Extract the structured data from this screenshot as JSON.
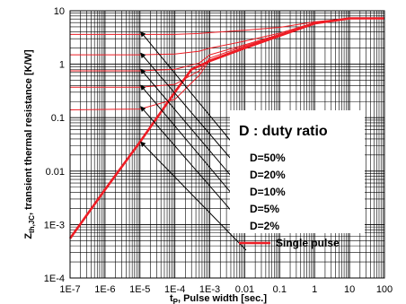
{
  "chart_data": {
    "type": "line",
    "xscale": "log",
    "yscale": "log",
    "xlim": [
      1e-07,
      100
    ],
    "ylim": [
      0.0001,
      10
    ],
    "xlabel_main": "t",
    "xlabel_sub": "P",
    "xlabel_rest": ", Pulse width [sec.]",
    "ylabel_main": "Z",
    "ylabel_sub": "th,JC",
    "ylabel_rest": ", transient thermal resistance [K/W]",
    "x_ticks": [
      {
        "value": 1e-07,
        "label": "1E-7"
      },
      {
        "value": 1e-06,
        "label": "1E-6"
      },
      {
        "value": 1e-05,
        "label": "1E-5"
      },
      {
        "value": 0.0001,
        "label": "1E-4"
      },
      {
        "value": 0.001,
        "label": "1E-3"
      },
      {
        "value": 0.01,
        "label": "0.01"
      },
      {
        "value": 0.1,
        "label": "0.1"
      },
      {
        "value": 1,
        "label": "1"
      },
      {
        "value": 10,
        "label": "10"
      },
      {
        "value": 100,
        "label": "100"
      }
    ],
    "y_ticks": [
      {
        "value": 10,
        "label": "10"
      },
      {
        "value": 1,
        "label": "1"
      },
      {
        "value": 0.1,
        "label": "0.1"
      },
      {
        "value": 0.01,
        "label": "0.01"
      },
      {
        "value": 0.001,
        "label": "1E-3"
      },
      {
        "value": 0.0001,
        "label": "1E-4"
      }
    ],
    "grid": true,
    "legend_title": "D : duty ratio",
    "legend_position": "right-center",
    "line_color": "#ee1c24",
    "series": [
      {
        "name": "D=50%",
        "x": [
          1e-07,
          1e-05,
          0.0001,
          0.0005,
          0.001,
          0.01,
          0.1,
          1,
          10,
          100
        ],
        "y": [
          3.6,
          3.6,
          3.6,
          3.75,
          3.9,
          4.3,
          4.9,
          6.2,
          7.2,
          7.2
        ]
      },
      {
        "name": "D=20%",
        "x": [
          1e-07,
          1e-05,
          0.0001,
          0.0005,
          0.001,
          0.01,
          0.1,
          1,
          10,
          100
        ],
        "y": [
          1.5,
          1.5,
          1.55,
          1.75,
          2.0,
          2.7,
          3.8,
          6.0,
          7.2,
          7.2
        ]
      },
      {
        "name": "D=10%",
        "x": [
          1e-07,
          1e-05,
          0.0001,
          0.0005,
          0.001,
          0.01,
          0.1,
          1,
          10,
          100
        ],
        "y": [
          0.75,
          0.75,
          0.8,
          1.05,
          1.5,
          2.3,
          3.6,
          5.9,
          7.2,
          7.2
        ]
      },
      {
        "name": "D=5%",
        "x": [
          1e-07,
          1e-05,
          0.0001,
          0.0005,
          0.001,
          0.01,
          0.1,
          1,
          10,
          100
        ],
        "y": [
          0.37,
          0.37,
          0.42,
          0.75,
          1.3,
          2.2,
          3.5,
          5.9,
          7.2,
          7.2
        ]
      },
      {
        "name": "D=2%",
        "x": [
          1e-07,
          1e-05,
          0.0001,
          0.0005,
          0.001,
          0.01,
          0.1,
          1,
          10,
          100
        ],
        "y": [
          0.14,
          0.145,
          0.22,
          0.62,
          1.2,
          2.1,
          3.45,
          5.85,
          7.2,
          7.2
        ]
      },
      {
        "name": "Single pulse",
        "x": [
          1e-07,
          1e-06,
          1e-05,
          0.0001,
          0.0003,
          0.001,
          0.01,
          0.1,
          1,
          10,
          100
        ],
        "y": [
          0.00055,
          0.0045,
          0.035,
          0.3,
          0.8,
          1.15,
          2.0,
          3.4,
          5.8,
          7.2,
          7.2
        ],
        "thick": true
      }
    ],
    "leader_lines": [
      {
        "from": [
          1e-05,
          4.0
        ],
        "to": [
          0.1,
          0.02
        ]
      },
      {
        "from": [
          1e-05,
          1.6
        ],
        "to": [
          0.1,
          0.01
        ]
      },
      {
        "from": [
          1e-05,
          0.8
        ],
        "to": [
          0.1,
          0.005
        ]
      },
      {
        "from": [
          1e-05,
          0.4
        ],
        "to": [
          0.1,
          0.0025
        ]
      },
      {
        "from": [
          1e-05,
          0.16
        ],
        "to": [
          0.1,
          0.0012
        ]
      },
      {
        "from": [
          1e-05,
          0.035
        ],
        "to": [
          0.1,
          0.0006
        ]
      }
    ]
  }
}
